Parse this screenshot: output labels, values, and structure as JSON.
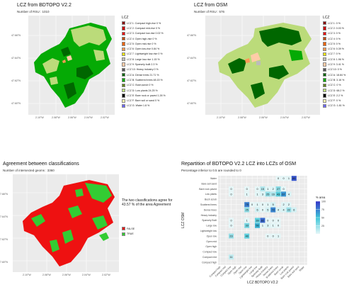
{
  "map1": {
    "title": "LCZ from   BDTOPO V2.2",
    "subtitle": "Number of RSU : 1010",
    "legend_title": "LCZ",
    "legend": [
      {
        "label": "LCZ 1: Compact high-rise 0 %",
        "color": "#8b0101"
      },
      {
        "label": "LCZ 2: Compact mid-rise 0 %",
        "color": "#cc0200"
      },
      {
        "label": "LCZ 3: Compact low-rise 0.02 %",
        "color": "#fc0001"
      },
      {
        "label": "LCZ 4: Open high-rise 0 %",
        "color": "#be4c03"
      },
      {
        "label": "LCZ 5: Open mid-rise 0 %",
        "color": "#ff6602"
      },
      {
        "label": "LCZ 6: Open low-rise 0.84 %",
        "color": "#ff9856"
      },
      {
        "label": "LCZ 7: Lightweight low-rise 0 %",
        "color": "#fbed08"
      },
      {
        "label": "LCZ 8: Large low-rise 1.15 %",
        "color": "#bcbcba"
      },
      {
        "label": "LCZ 9: Sparsely built 2.3 %",
        "color": "#ffcca7"
      },
      {
        "label": "LCZ 10: Heavy industry 0 %",
        "color": "#57555a"
      },
      {
        "label": "LCZ A: Dense trees 21.71 %",
        "color": "#006700"
      },
      {
        "label": "LCZ B: Scattered trees 48.15 %",
        "color": "#05aa05"
      },
      {
        "label": "LCZ C: Bush,scrub 0 %",
        "color": "#648423"
      },
      {
        "label": "LCZ D: Low plants 24.25 %",
        "color": "#bbdb7a"
      },
      {
        "label": "LCZ E: Bare rock or paved 1.26 %",
        "color": "#010101"
      },
      {
        "label": "LCZ F: Bare soil or sand 0 %",
        "color": "#fdf6ae"
      },
      {
        "label": "LCZ G: Water 1.8 %",
        "color": "#6d67fd"
      }
    ]
  },
  "map2": {
    "title": "LCZ from   OSM",
    "subtitle": "Number of RSU : 576",
    "legend_title": "LCZ",
    "legend": [
      {
        "label": "LCZ 1: 0 %",
        "color": "#8b0101"
      },
      {
        "label": "LCZ 2: 0.03 %",
        "color": "#cc0200"
      },
      {
        "label": "LCZ 3: 0 %",
        "color": "#fc0001"
      },
      {
        "label": "LCZ 4: 0 %",
        "color": "#be4c03"
      },
      {
        "label": "LCZ 5: 0 %",
        "color": "#ff6602"
      },
      {
        "label": "LCZ 6: 0.39 %",
        "color": "#ff9856"
      },
      {
        "label": "LCZ 7: 0 %",
        "color": "#fbed08"
      },
      {
        "label": "LCZ 8: 1.96 %",
        "color": "#bcbcba"
      },
      {
        "label": "LCZ 9: 3.41 %",
        "color": "#ffcca7"
      },
      {
        "label": "LCZ 10: 0 %",
        "color": "#57555a"
      },
      {
        "label": "LCZ A: 18.84 %",
        "color": "#006700"
      },
      {
        "label": "LCZ B: 3.16 %",
        "color": "#05aa05"
      },
      {
        "label": "LCZ C: 0 %",
        "color": "#648423"
      },
      {
        "label": "LCZ D: 68.2 %",
        "color": "#bbdb7a"
      },
      {
        "label": "LCZ E: 2.2 %",
        "color": "#010101"
      },
      {
        "label": "LCZ F: 0 %",
        "color": "#fdf6ae"
      },
      {
        "label": "LCZ G: 1.81 %",
        "color": "#6d67fd"
      }
    ]
  },
  "map3": {
    "title": "Agreement  between classifications",
    "subtitle": "Number of intersected geoms : 3360",
    "note": "The two classifications agree for 43.57 % of the area Agreement",
    "legend": [
      {
        "label": "FALSE",
        "color": "#ee1111"
      },
      {
        "label": "TRUE",
        "color": "#33cc33"
      }
    ]
  },
  "lon_ticks": [
    "2.10°W",
    "2.08°W",
    "2.06°W",
    "2.04°W",
    "2.02°W",
    "2.00°W"
  ],
  "lat_ticks": [
    "47.66°N",
    "47.64°N",
    "47.62°N",
    "47.60°N"
  ],
  "chart_data": {
    "type": "heatmap",
    "title": "Repartition of  BDTOPO V2.2  LCZ into LCZs of  OSM",
    "subtitle": "Percentage inferior to 0.5 are rounded to 0",
    "xlabel": "LCZ  BDTOPO V2.2",
    "ylabel": "LCZ  OSM",
    "x": [
      "Compact high",
      "Compact mid",
      "Compact low",
      "Open high",
      "Open mid",
      "Open low",
      "Lightweight low",
      "Large low",
      "Sparsely Built",
      "Heavy industry",
      "Dense trees",
      "Scattered trees",
      "Bush scrub",
      "Low plants",
      "Bare rock paved",
      "Bare soil sand",
      "Water"
    ],
    "y": [
      "Compact high",
      "Compact mid",
      "Compact low",
      "Open high",
      "Open mid",
      "Open low",
      "Lightweight low",
      "Large low",
      "Sparsely Built",
      "Heavy industry",
      "Dense trees",
      "Scattered trees",
      "Bush scrub",
      "Low plants",
      "Bare rock paved",
      "Bare soil sand",
      "Water"
    ],
    "colorbar": {
      "label": "% area",
      "ticks": [
        25,
        50,
        75,
        100
      ],
      "range": [
        0,
        100
      ],
      "low_color": "#e6f7f8",
      "high_color": "#3535c8"
    },
    "cells": [
      {
        "xi": 2,
        "yi": 1,
        "v": 11
      },
      {
        "xi": 2,
        "yi": 5,
        "v": 23
      },
      {
        "xi": 5,
        "yi": 5,
        "v": 40
      },
      {
        "xi": 9,
        "yi": 5,
        "v": 0
      },
      {
        "xi": 10,
        "yi": 5,
        "v": 0
      },
      {
        "xi": 11,
        "yi": 5,
        "v": 1
      },
      {
        "xi": 2,
        "yi": 7,
        "v": 0
      },
      {
        "xi": 5,
        "yi": 7,
        "v": 33
      },
      {
        "xi": 7,
        "yi": 7,
        "v": 56
      },
      {
        "xi": 8,
        "yi": 7,
        "v": 1
      },
      {
        "xi": 9,
        "yi": 7,
        "v": 3
      },
      {
        "xi": 10,
        "yi": 7,
        "v": 1
      },
      {
        "xi": 11,
        "yi": 7,
        "v": 0
      },
      {
        "xi": 2,
        "yi": 8,
        "v": 0
      },
      {
        "xi": 5,
        "yi": 8,
        "v": 1
      },
      {
        "xi": 7,
        "yi": 8,
        "v": 39
      },
      {
        "xi": 8,
        "yi": 8,
        "v": 82
      },
      {
        "xi": 9,
        "yi": 8,
        "v": 0
      },
      {
        "xi": 10,
        "yi": 8,
        "v": 0
      },
      {
        "xi": 11,
        "yi": 8,
        "v": 0
      },
      {
        "xi": 5,
        "yi": 10,
        "v": 25
      },
      {
        "xi": 7,
        "yi": 10,
        "v": 6
      },
      {
        "xi": 8,
        "yi": 10,
        "v": 0
      },
      {
        "xi": 9,
        "yi": 10,
        "v": 5
      },
      {
        "xi": 10,
        "yi": 10,
        "v": 72
      },
      {
        "xi": 11,
        "yi": 10,
        "v": 4
      },
      {
        "xi": 12,
        "yi": 10,
        "v": 4
      },
      {
        "xi": 13,
        "yi": 10,
        "v": 22
      },
      {
        "xi": 14,
        "yi": 10,
        "v": 6
      },
      {
        "xi": 5,
        "yi": 11,
        "v": 75
      },
      {
        "xi": 6,
        "yi": 11,
        "v": 0
      },
      {
        "xi": 7,
        "yi": 11,
        "v": 1
      },
      {
        "xi": 8,
        "yi": 11,
        "v": 0
      },
      {
        "xi": 9,
        "yi": 11,
        "v": 1
      },
      {
        "xi": 10,
        "yi": 11,
        "v": 5
      },
      {
        "xi": 12,
        "yi": 11,
        "v": 2
      },
      {
        "xi": 13,
        "yi": 11,
        "v": 2
      },
      {
        "xi": 2,
        "yi": 13,
        "v": 0
      },
      {
        "xi": 5,
        "yi": 13,
        "v": 1
      },
      {
        "xi": 7,
        "yi": 13,
        "v": 1
      },
      {
        "xi": 8,
        "yi": 13,
        "v": 3
      },
      {
        "xi": 9,
        "yi": 13,
        "v": 25
      },
      {
        "xi": 10,
        "yi": 13,
        "v": 16
      },
      {
        "xi": 11,
        "yi": 13,
        "v": 43
      },
      {
        "xi": 12,
        "yi": 13,
        "v": 67
      },
      {
        "xi": 13,
        "yi": 13,
        "v": 4
      },
      {
        "xi": 2,
        "yi": 14,
        "v": 0
      },
      {
        "xi": 5,
        "yi": 14,
        "v": 0
      },
      {
        "xi": 7,
        "yi": 14,
        "v": 0
      },
      {
        "xi": 8,
        "yi": 14,
        "v": 15
      },
      {
        "xi": 9,
        "yi": 14,
        "v": 1
      },
      {
        "xi": 10,
        "yi": 14,
        "v": 2
      },
      {
        "xi": 11,
        "yi": 14,
        "v": 27
      },
      {
        "xi": 12,
        "yi": 14,
        "v": 0
      },
      {
        "xi": 11,
        "yi": 16,
        "v": 0
      },
      {
        "xi": 12,
        "yi": 16,
        "v": 0
      },
      {
        "xi": 13,
        "yi": 16,
        "v": 1
      },
      {
        "xi": 14,
        "yi": 16,
        "v": 89
      }
    ]
  }
}
